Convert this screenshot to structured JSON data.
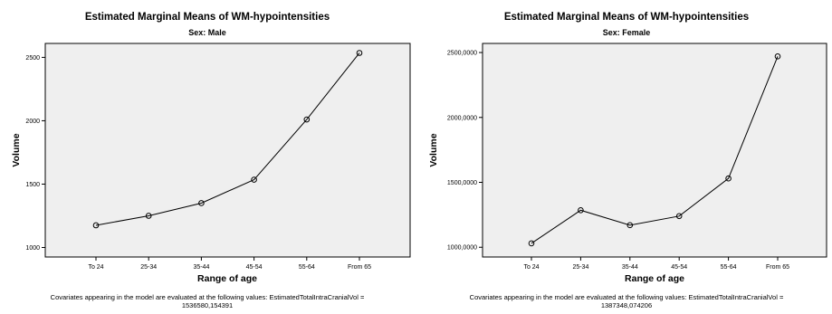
{
  "chart_data": [
    {
      "type": "line",
      "title": "Estimated Marginal Means of WM-hypointensities",
      "subtitle": "Sex: Male",
      "xlabel": "Range of age",
      "ylabel": "Volume",
      "categories": [
        "To 24",
        "25-34",
        "35-44",
        "45-54",
        "55-64",
        "From 65"
      ],
      "series": [
        {
          "values": [
            1175,
            1250,
            1350,
            1535,
            2010,
            2535
          ]
        }
      ],
      "ylim": [
        925,
        2610
      ],
      "yticks": [
        1000,
        1500,
        2000,
        2500
      ],
      "ytick_labels": [
        "1000",
        "1500",
        "2000",
        "2500"
      ],
      "grid": false,
      "note_line1": "Covariates appearing in the model are evaluated at the following values: EstimatedTotalIntraCranialVol =",
      "note_line2": "1536580,154391",
      "colors": {
        "background": "#efefef",
        "line": "#000000"
      }
    },
    {
      "type": "line",
      "title": "Estimated Marginal Means of WM-hypointensities",
      "subtitle": "Sex: Female",
      "xlabel": "Range of age",
      "ylabel": "Volume",
      "categories": [
        "To 24",
        "25-34",
        "35-44",
        "45-54",
        "55-64",
        "From 65"
      ],
      "series": [
        {
          "values": [
            1030,
            1285,
            1170,
            1240,
            1530,
            2470
          ]
        }
      ],
      "ylim": [
        925,
        2570
      ],
      "yticks": [
        1000,
        1500,
        2000,
        2500
      ],
      "ytick_labels": [
        "1000,0000",
        "1500,0000",
        "2000,0000",
        "2500,0000"
      ],
      "grid": false,
      "note_line1": "Covariates appearing in the model are evaluated at the following values: EstimatedTotalIntraCranialVol =",
      "note_line2": "1387348,074206",
      "colors": {
        "background": "#efefef",
        "line": "#000000"
      }
    }
  ]
}
